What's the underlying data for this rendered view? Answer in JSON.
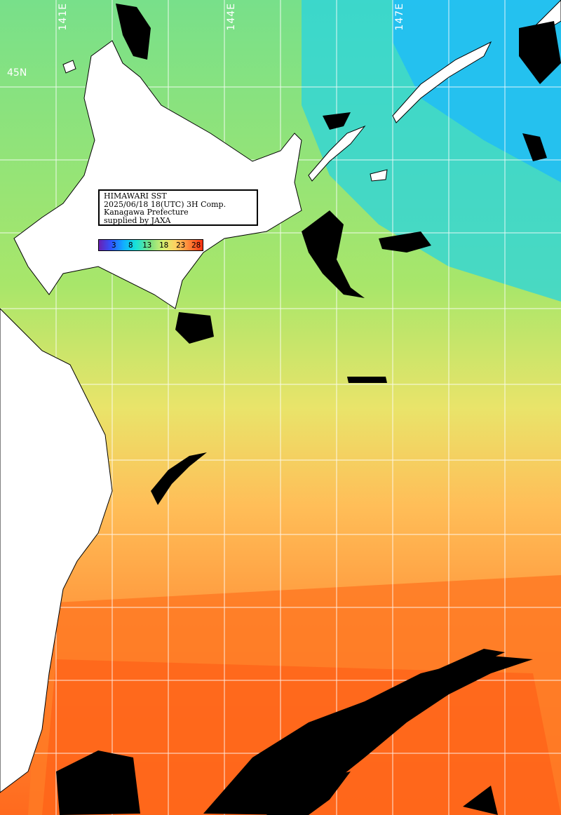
{
  "info": {
    "line1": "HIMAWARI SST",
    "line2": "2025/06/18 18(UTC) 3H Comp.",
    "line3": "Kanagawa Prefecture",
    "line4": "supplied by JAXA"
  },
  "legend": {
    "ticks": [
      "3",
      "8",
      "13",
      "18",
      "23",
      "28"
    ],
    "colors": [
      "#6a1fb3",
      "#2f55ff",
      "#10b0ff",
      "#19e3d6",
      "#7fe07f",
      "#d6f070",
      "#ffd060",
      "#ff8a3a",
      "#ff3010"
    ]
  },
  "labels": {
    "lon": [
      "141E",
      "144E",
      "147E"
    ],
    "lat": [
      "45N"
    ]
  }
}
